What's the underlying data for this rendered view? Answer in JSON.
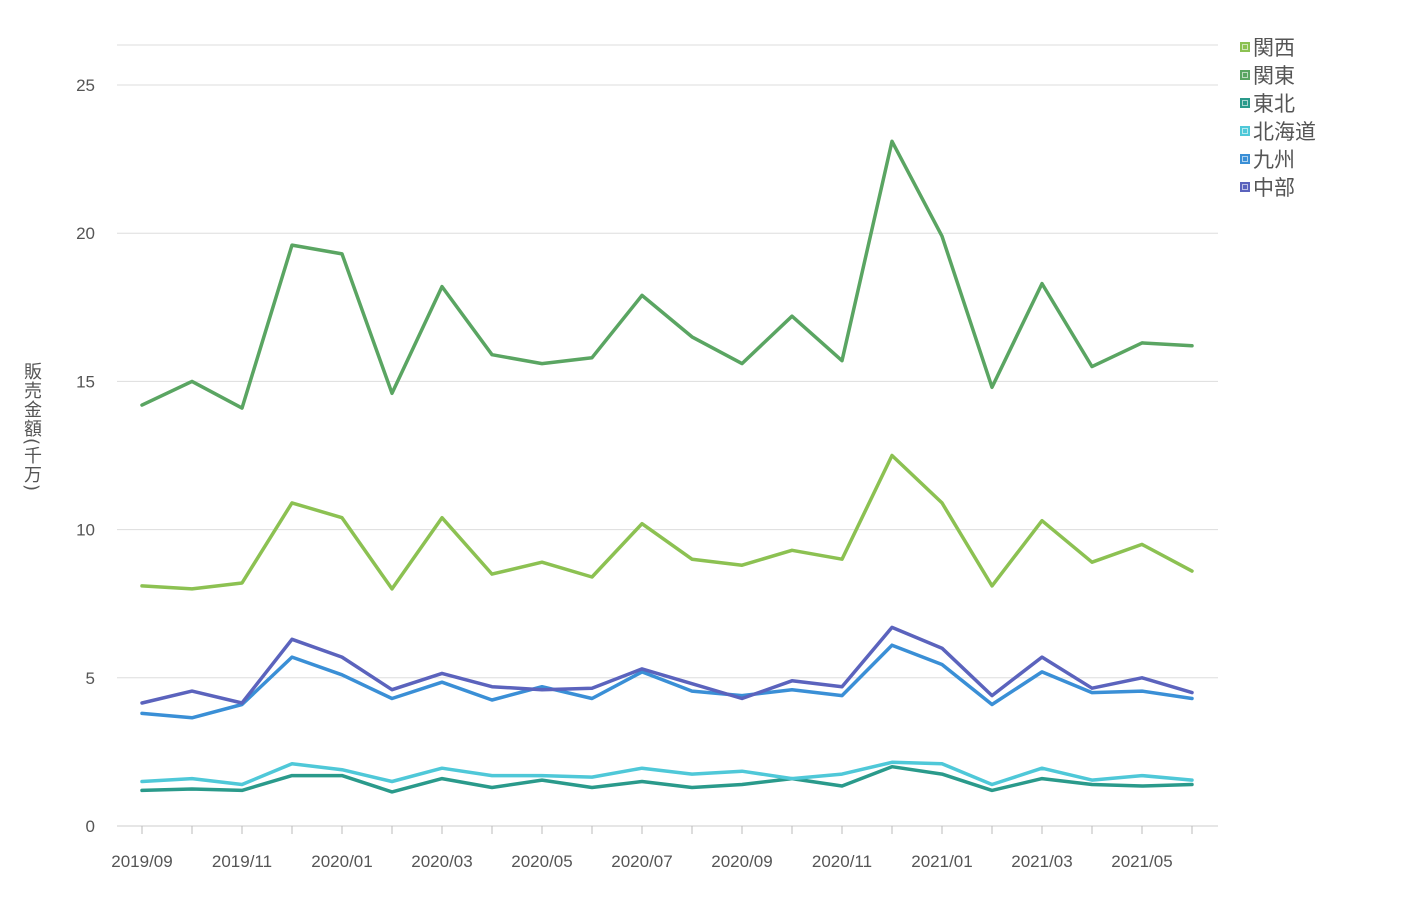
{
  "chart_data": {
    "type": "line",
    "title": "",
    "xlabel": "",
    "ylabel": "販売金額(千万)",
    "ylim": [
      0,
      25
    ],
    "yticks": [
      0,
      5,
      10,
      15,
      20,
      25
    ],
    "grid": true,
    "legend_position": "top-right",
    "categories": [
      "2019/09",
      "2019/10",
      "2019/11",
      "2019/12",
      "2020/01",
      "2020/02",
      "2020/03",
      "2020/04",
      "2020/05",
      "2020/06",
      "2020/07",
      "2020/08",
      "2020/09",
      "2020/10",
      "2020/11",
      "2020/12",
      "2021/01",
      "2021/02",
      "2021/03",
      "2021/04",
      "2021/05",
      "2021/06"
    ],
    "xtick_labels": [
      "2019/09",
      "2019/11",
      "2020/01",
      "2020/03",
      "2020/05",
      "2020/07",
      "2020/09",
      "2020/11",
      "2021/01",
      "2021/03",
      "2021/05"
    ],
    "series": [
      {
        "name": "関西",
        "color": "#8cc152",
        "values": [
          8.1,
          8.0,
          8.2,
          10.9,
          10.4,
          8.0,
          10.4,
          8.5,
          8.9,
          8.4,
          10.2,
          9.0,
          8.8,
          9.3,
          9.0,
          12.5,
          10.9,
          8.1,
          10.3,
          8.9,
          9.5,
          8.6
        ]
      },
      {
        "name": "関東",
        "color": "#5aa562",
        "values": [
          14.2,
          15.0,
          14.1,
          19.6,
          19.3,
          14.6,
          18.2,
          15.9,
          15.6,
          15.8,
          17.9,
          16.5,
          15.6,
          17.2,
          15.7,
          23.1,
          19.9,
          14.8,
          18.3,
          15.5,
          16.3,
          16.2
        ]
      },
      {
        "name": "東北",
        "color": "#2a9a8b",
        "values": [
          1.2,
          1.25,
          1.2,
          1.7,
          1.7,
          1.15,
          1.6,
          1.3,
          1.55,
          1.3,
          1.5,
          1.3,
          1.4,
          1.6,
          1.35,
          2.0,
          1.75,
          1.2,
          1.6,
          1.4,
          1.35,
          1.4
        ]
      },
      {
        "name": "北海道",
        "color": "#4fc8d8",
        "values": [
          1.5,
          1.6,
          1.4,
          2.1,
          1.9,
          1.5,
          1.95,
          1.7,
          1.7,
          1.65,
          1.95,
          1.75,
          1.85,
          1.6,
          1.75,
          2.15,
          2.1,
          1.4,
          1.95,
          1.55,
          1.7,
          1.55
        ]
      },
      {
        "name": "九州",
        "color": "#3a8fd6",
        "values": [
          3.8,
          3.65,
          4.1,
          5.7,
          5.1,
          4.3,
          4.85,
          4.25,
          4.7,
          4.3,
          5.2,
          4.55,
          4.4,
          4.6,
          4.4,
          6.1,
          5.45,
          4.1,
          5.2,
          4.5,
          4.55,
          4.3
        ]
      },
      {
        "name": "中部",
        "color": "#5b63bd",
        "values": [
          4.15,
          4.55,
          4.15,
          6.3,
          5.7,
          4.6,
          5.15,
          4.7,
          4.6,
          4.65,
          5.3,
          4.8,
          4.3,
          4.9,
          4.7,
          6.7,
          6.0,
          4.4,
          5.7,
          4.65,
          5.0,
          4.5
        ]
      }
    ]
  }
}
